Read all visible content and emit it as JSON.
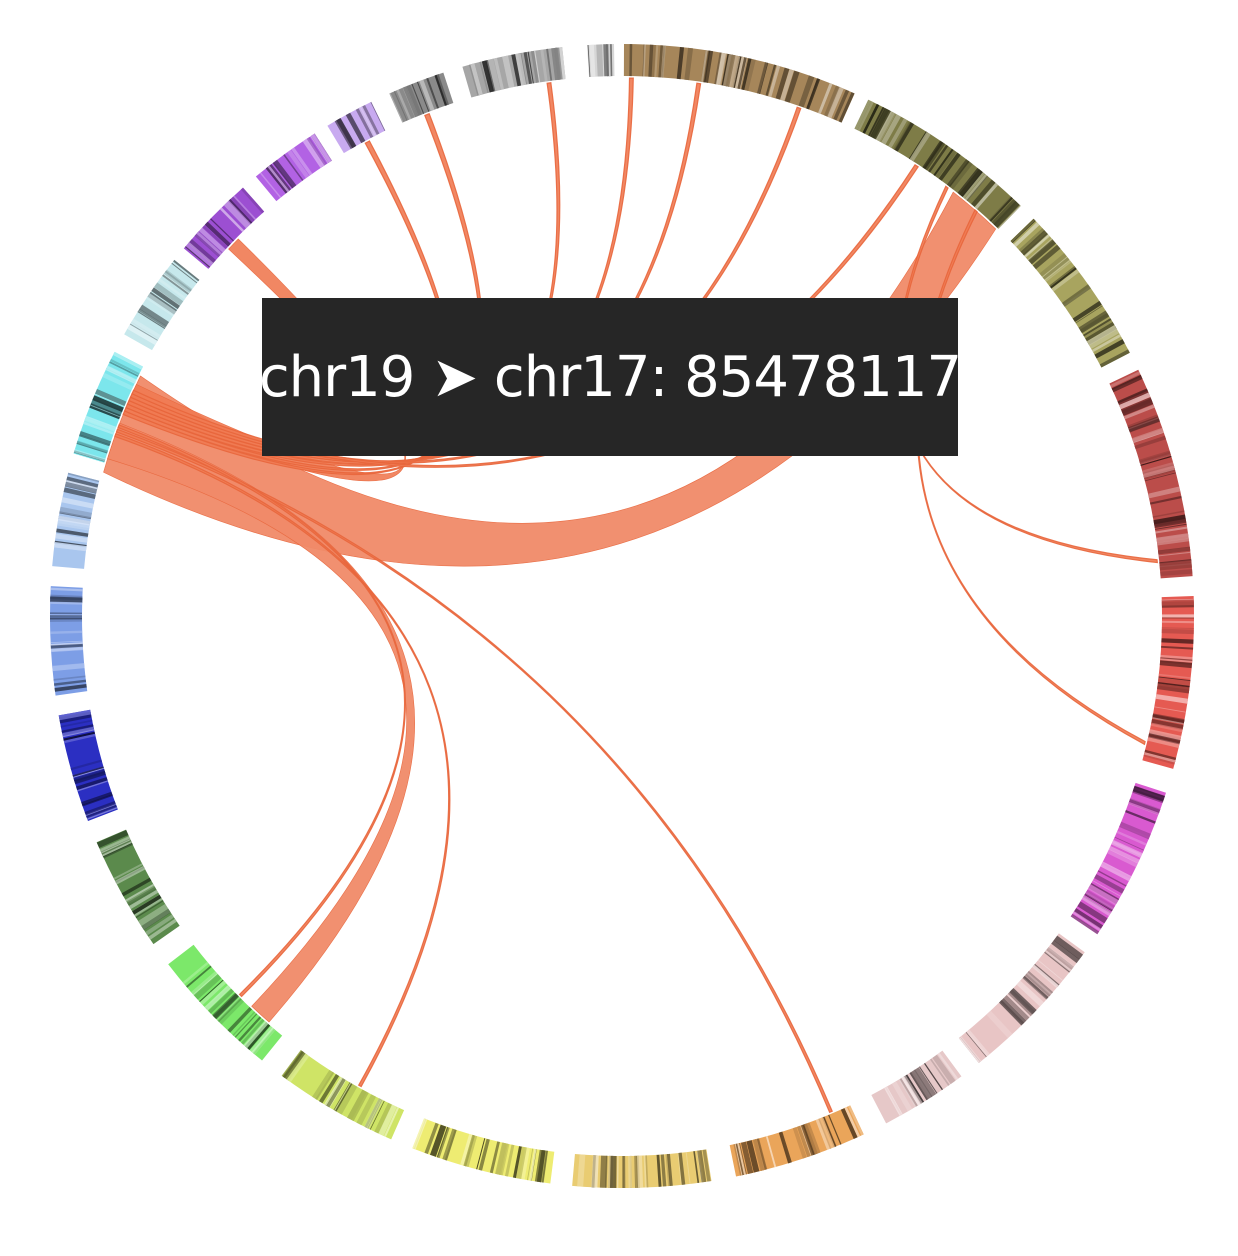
{
  "tooltip": {
    "text": "chr19 ➤ chr17: 85478117"
  },
  "segments": [
    {
      "id": "chr1",
      "color": "#a6865a"
    },
    {
      "id": "chr2",
      "color": "#7e7c47"
    },
    {
      "id": "chr3",
      "color": "#a8a45f"
    },
    {
      "id": "chr4",
      "color": "#bb4d4a"
    },
    {
      "id": "chr5",
      "color": "#e55a52"
    },
    {
      "id": "chr6",
      "color": "#d95ad0"
    },
    {
      "id": "chr7",
      "color": "#e8c5c5"
    },
    {
      "id": "chr8",
      "color": "#e6c8c8"
    },
    {
      "id": "chr9",
      "color": "#eaa55a"
    },
    {
      "id": "chr10",
      "color": "#e9cc72"
    },
    {
      "id": "chr11",
      "color": "#eeec72"
    },
    {
      "id": "chr12",
      "color": "#cfe466"
    },
    {
      "id": "chr13",
      "color": "#7ce86a"
    },
    {
      "id": "chr14",
      "color": "#5b8a4c"
    },
    {
      "id": "chr15",
      "color": "#2b2fc2"
    },
    {
      "id": "chr16",
      "color": "#7d9ee6"
    },
    {
      "id": "chr17",
      "color": "#a9c6ee"
    },
    {
      "id": "chr18",
      "color": "#7ce6ec"
    },
    {
      "id": "chr19",
      "color": "#c6e8ec"
    },
    {
      "id": "chr20",
      "color": "#9c4fd2"
    },
    {
      "id": "chr21",
      "color": "#b262e4"
    },
    {
      "id": "chr22",
      "color": "#c8aaf0"
    },
    {
      "id": "chrX",
      "color": "#8a8a8a"
    },
    {
      "id": "chrY",
      "color": "#a6a6a6"
    },
    {
      "id": "chrM",
      "color": "#d6d6d6"
    }
  ],
  "links": [
    {
      "from": "chr18",
      "to": "chr2",
      "weight": "major"
    },
    {
      "from": "chr18",
      "to": "chr13",
      "weight": "major"
    },
    {
      "from": "chr20",
      "to": "chr18",
      "weight": "medium"
    },
    {
      "from": "chr22",
      "to": "chr18",
      "weight": "minor"
    },
    {
      "from": "chrX",
      "to": "chr18",
      "weight": "minor"
    },
    {
      "from": "chrY",
      "to": "chr18",
      "weight": "minor"
    },
    {
      "from": "chr1",
      "to": "chr18",
      "weight": "minor"
    },
    {
      "from": "chr1",
      "to": "chr18",
      "weight": "minor"
    },
    {
      "from": "chr1",
      "to": "chr18",
      "weight": "minor"
    },
    {
      "from": "chr2",
      "to": "chr18",
      "weight": "minor"
    },
    {
      "from": "chr2",
      "to": "chr4",
      "weight": "minor"
    },
    {
      "from": "chr2",
      "to": "chr5",
      "weight": "minor"
    },
    {
      "from": "chr18",
      "to": "chr9",
      "weight": "minor"
    },
    {
      "from": "chr18",
      "to": "chr12",
      "weight": "minor"
    },
    {
      "from": "chr18",
      "to": "chr13",
      "weight": "minor"
    }
  ]
}
